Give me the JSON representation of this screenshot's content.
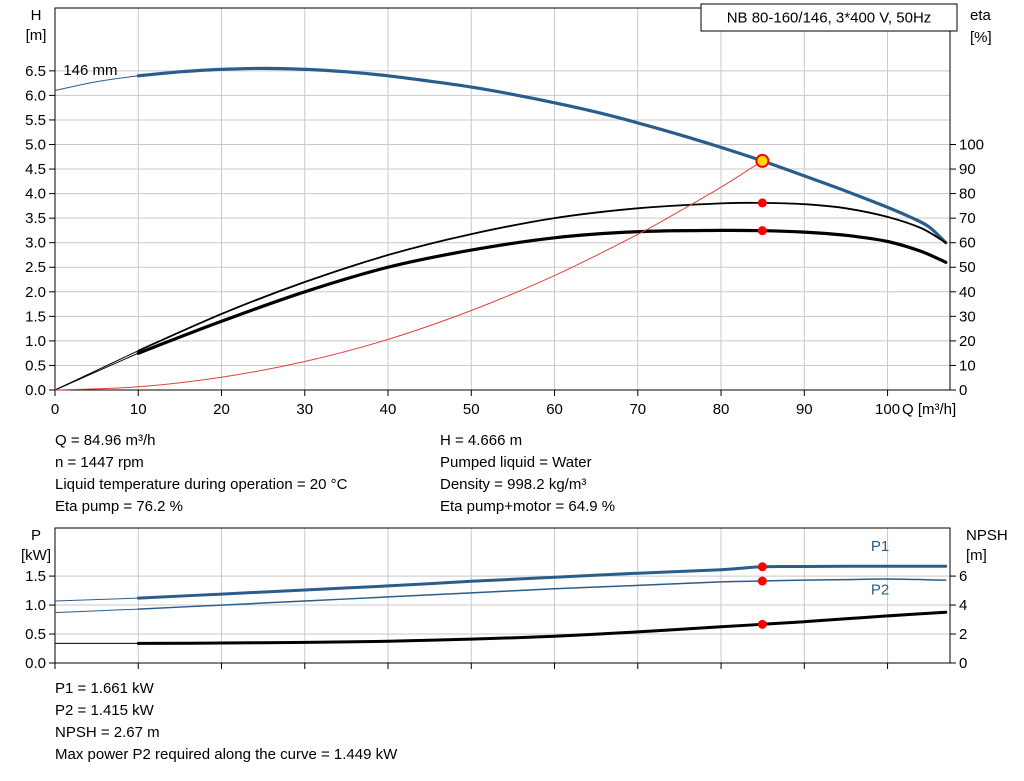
{
  "title_box": "NB 80-160/146, 3*400 V, 50Hz",
  "info_block": {
    "left": [
      "Q = 84.96 m³/h",
      "n = 1447 rpm",
      "Liquid temperature during operation = 20 °C",
      "Eta pump = 76.2 %"
    ],
    "right": [
      "H = 4.666 m",
      "Pumped liquid = Water",
      "Density = 998.2 kg/m³",
      "Eta pump+motor = 64.9 %"
    ]
  },
  "bottom_block": [
    "P1 = 1.661 kW",
    "P2 = 1.415 kW",
    "NPSH = 2.67 m",
    "Max power P2 required along the curve = 1.449 kW"
  ],
  "colors": {
    "curve_blue": "#2b5d8c",
    "curve_black": "#000000",
    "system_red": "#e04040",
    "dot_red": "#ff0000",
    "duty_yellow": "#ffd800",
    "grid": "#c9c9c9"
  },
  "chart_data": [
    {
      "name": "qh-eta-chart",
      "type": "line",
      "title": "NB 80-160/146, 3*400 V, 50Hz",
      "xlabel": "Q [m³/h]",
      "ylabel_left": [
        "H",
        "[m]"
      ],
      "ylabel_right": [
        "eta",
        "[%]"
      ],
      "xlim": [
        0,
        107.5
      ],
      "ylim_left": [
        0,
        7.78
      ],
      "ylim_right": [
        0,
        155.6
      ],
      "x_ticks": [
        [
          0,
          "0"
        ],
        [
          10,
          "10"
        ],
        [
          20,
          "20"
        ],
        [
          30,
          "30"
        ],
        [
          40,
          "40"
        ],
        [
          50,
          "50"
        ],
        [
          60,
          "60"
        ],
        [
          70,
          "70"
        ],
        [
          80,
          "80"
        ],
        [
          90,
          "90"
        ],
        [
          100,
          "100"
        ]
      ],
      "y_ticks_left": [
        [
          0,
          "0.0"
        ],
        [
          0.5,
          "0.5"
        ],
        [
          1,
          "1.0"
        ],
        [
          1.5,
          "1.5"
        ],
        [
          2,
          "2.0"
        ],
        [
          2.5,
          "2.5"
        ],
        [
          3,
          "3.0"
        ],
        [
          3.5,
          "3.5"
        ],
        [
          4,
          "4.0"
        ],
        [
          4.5,
          "4.5"
        ],
        [
          5,
          "5.0"
        ],
        [
          5.5,
          "5.5"
        ],
        [
          6,
          "6.0"
        ],
        [
          6.5,
          "6.5"
        ]
      ],
      "y_ticks_right": [
        [
          0,
          "0"
        ],
        [
          10,
          "10"
        ],
        [
          20,
          "20"
        ],
        [
          30,
          "30"
        ],
        [
          40,
          "40"
        ],
        [
          50,
          "50"
        ],
        [
          60,
          "60"
        ],
        [
          70,
          "70"
        ],
        [
          80,
          "80"
        ],
        [
          90,
          "90"
        ],
        [
          100,
          "100"
        ]
      ],
      "grid": true,
      "series": [
        {
          "name": "head-curve-146mm",
          "color": "#2b5d8c",
          "width": 3.2,
          "axis": "left",
          "thin_until": 10,
          "x": [
            0,
            5,
            10,
            15,
            20,
            25,
            30,
            35,
            40,
            45,
            50,
            55,
            60,
            65,
            70,
            75,
            80,
            84.96,
            90,
            95,
            100,
            103,
            105,
            107
          ],
          "y": [
            6.1,
            6.28,
            6.4,
            6.48,
            6.53,
            6.55,
            6.53,
            6.48,
            6.4,
            6.29,
            6.17,
            6.02,
            5.85,
            5.66,
            5.44,
            5.2,
            4.94,
            4.666,
            4.36,
            4.05,
            3.72,
            3.5,
            3.32,
            3.0
          ]
        },
        {
          "name": "eta-pump-curve",
          "color": "#000000",
          "width": 1.8,
          "axis": "right",
          "thin_until": 10,
          "x": [
            0,
            10,
            20,
            30,
            40,
            50,
            60,
            70,
            80,
            84.96,
            90,
            95,
            100,
            104,
            107
          ],
          "y": [
            0,
            16,
            31,
            44,
            55,
            63.5,
            70,
            74,
            76,
            76.2,
            75.7,
            74,
            70.5,
            66,
            60
          ]
        },
        {
          "name": "eta-pump-motor-curve",
          "color": "#000000",
          "width": 3.2,
          "axis": "right",
          "thin_until": 10,
          "x": [
            0,
            10,
            20,
            30,
            40,
            50,
            60,
            70,
            80,
            84.96,
            90,
            95,
            100,
            104,
            107
          ],
          "y": [
            0,
            15,
            28,
            40,
            50,
            57,
            62,
            64.5,
            65,
            64.9,
            64.3,
            63,
            60.5,
            56.5,
            52
          ]
        },
        {
          "name": "system-curve",
          "color": "#e04040",
          "width": 1,
          "axis": "left",
          "thin_until": 999,
          "x": [
            0,
            10,
            20,
            30,
            40,
            50,
            60,
            70,
            75,
            80,
            84.96
          ],
          "y": [
            0,
            0.065,
            0.26,
            0.58,
            1.03,
            1.62,
            2.33,
            3.17,
            3.64,
            4.13,
            4.666
          ]
        }
      ],
      "points": [
        {
          "name": "duty-point",
          "x": 84.96,
          "y": 4.666,
          "axis": "left",
          "fill": "#ffd800",
          "stroke": "#ff0000",
          "stroke_width": 2,
          "r": 6
        },
        {
          "name": "eta-pump-point",
          "x": 84.96,
          "y": 76.2,
          "axis": "right",
          "fill": "#ff0000",
          "r": 4.5
        },
        {
          "name": "eta-pump-motor-point",
          "x": 84.96,
          "y": 64.9,
          "axis": "right",
          "fill": "#ff0000",
          "r": 4.5
        }
      ],
      "annotations": [
        {
          "name": "impeller-label",
          "text": "146 mm",
          "x": 1.0,
          "y": 6.42,
          "axis": "left",
          "color": "#000000"
        }
      ]
    },
    {
      "name": "power-npsh-chart",
      "type": "line",
      "xlabel": "",
      "ylabel_left": [
        "P",
        "[kW]"
      ],
      "ylabel_right": [
        "NPSH",
        "[m]"
      ],
      "xlim": [
        0,
        107.5
      ],
      "ylim_left": [
        0,
        2.33
      ],
      "ylim_right": [
        0,
        9.32
      ],
      "x_ticks": [
        [
          0,
          ""
        ],
        [
          10,
          ""
        ],
        [
          20,
          ""
        ],
        [
          30,
          ""
        ],
        [
          40,
          ""
        ],
        [
          50,
          ""
        ],
        [
          60,
          ""
        ],
        [
          70,
          ""
        ],
        [
          80,
          ""
        ],
        [
          90,
          ""
        ],
        [
          100,
          ""
        ]
      ],
      "y_ticks_left": [
        [
          0,
          "0.0"
        ],
        [
          0.5,
          "0.5"
        ],
        [
          1,
          "1.0"
        ],
        [
          1.5,
          "1.5"
        ]
      ],
      "y_ticks_right": [
        [
          0,
          "0"
        ],
        [
          2,
          "2"
        ],
        [
          4,
          "4"
        ],
        [
          6,
          "6"
        ]
      ],
      "grid": true,
      "series": [
        {
          "name": "p1-curve",
          "color": "#2b5d8c",
          "width": 3,
          "axis": "left",
          "thin_until": 10,
          "x": [
            0,
            10,
            20,
            30,
            40,
            50,
            60,
            70,
            80,
            84.96,
            90,
            95,
            100,
            107
          ],
          "y": [
            1.07,
            1.12,
            1.19,
            1.26,
            1.33,
            1.41,
            1.48,
            1.55,
            1.61,
            1.661,
            1.665,
            1.67,
            1.67,
            1.67
          ]
        },
        {
          "name": "p2-curve",
          "color": "#2b5d8c",
          "width": 1.5,
          "axis": "left",
          "thin_until": 10,
          "x": [
            0,
            10,
            20,
            30,
            40,
            50,
            60,
            70,
            80,
            84.96,
            90,
            95,
            100,
            107
          ],
          "y": [
            0.87,
            0.93,
            1.0,
            1.07,
            1.14,
            1.21,
            1.28,
            1.34,
            1.4,
            1.415,
            1.43,
            1.44,
            1.449,
            1.43
          ]
        },
        {
          "name": "npsh-curve",
          "color": "#000000",
          "width": 3,
          "axis": "right",
          "thin_until": 10,
          "x": [
            0,
            10,
            20,
            30,
            40,
            50,
            60,
            70,
            80,
            84.96,
            90,
            95,
            100,
            107
          ],
          "y": [
            1.35,
            1.35,
            1.38,
            1.42,
            1.5,
            1.65,
            1.85,
            2.15,
            2.5,
            2.67,
            2.85,
            3.05,
            3.25,
            3.5
          ]
        }
      ],
      "points": [
        {
          "name": "p1-point",
          "x": 84.96,
          "y": 1.661,
          "axis": "left",
          "fill": "#ff0000",
          "r": 4.5
        },
        {
          "name": "p2-point",
          "x": 84.96,
          "y": 1.415,
          "axis": "left",
          "fill": "#ff0000",
          "r": 4.5
        },
        {
          "name": "npsh-point",
          "x": 84.96,
          "y": 2.67,
          "axis": "right",
          "fill": "#ff0000",
          "r": 4.5
        }
      ],
      "annotations": [
        {
          "name": "p1-label",
          "text": "P1",
          "x": 98,
          "y": 1.93,
          "axis": "left",
          "color": "#2b5d8c"
        },
        {
          "name": "p2-label",
          "text": "P2",
          "x": 98,
          "y": 1.18,
          "axis": "left",
          "color": "#2b5d8c"
        }
      ]
    }
  ]
}
